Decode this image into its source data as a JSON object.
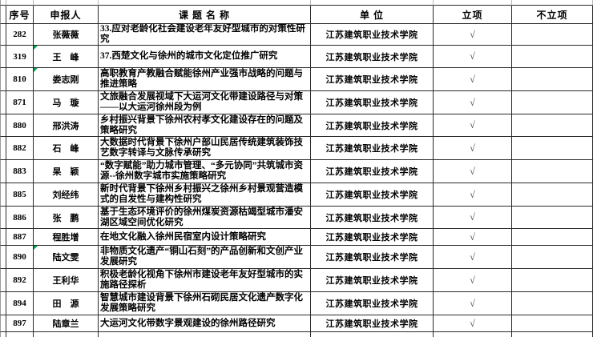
{
  "table": {
    "headers": [
      "序号",
      "申报人",
      "课 题 名 称",
      "单 位",
      "立项",
      "不立项"
    ],
    "check_mark": "√",
    "rows": [
      {
        "no": "282",
        "applicant": "张薇薇",
        "title": "33.应对老龄化社会建设老年友好型城市的对策性研究",
        "unit": "江苏建筑职业技术学院",
        "approved": "√",
        "not_approved": "",
        "name_flag": false,
        "left_green": false
      },
      {
        "no": "319",
        "applicant": "王　峰",
        "title": "37.西楚文化与徐州的城市文化定位推广研究",
        "unit": "江苏建筑职业技术学院",
        "approved": "√",
        "not_approved": "",
        "name_flag": true,
        "left_green": false
      },
      {
        "no": "810",
        "applicant": "娄志刚",
        "title": "高职教育产教融合赋能徐州产业强市战略的问题与推进策略",
        "unit": "江苏建筑职业技术学院",
        "approved": "√",
        "not_approved": "",
        "name_flag": true,
        "left_green": false
      },
      {
        "no": "871",
        "applicant": "马　璇",
        "title": "文旅融合发展视域下大运河文化带建设路径与对策——以大运河徐州段为例",
        "unit": "江苏建筑职业技术学院",
        "approved": "√",
        "not_approved": "",
        "name_flag": false,
        "left_green": false
      },
      {
        "no": "880",
        "applicant": "邢洪涛",
        "title": "乡村振兴背景下徐州农村孝文化建设存在的问题及策略研究",
        "unit": "江苏建筑职业技术学院",
        "approved": "√",
        "not_approved": "",
        "name_flag": false,
        "left_green": false
      },
      {
        "no": "882",
        "applicant": "石　峰",
        "title": "大数据时代背景下徐州户部山民居传统建筑装饰技艺数字转译与文脉传承研究",
        "unit": "江苏建筑职业技术学院",
        "approved": "√",
        "not_approved": "",
        "name_flag": false,
        "left_green": false
      },
      {
        "no": "883",
        "applicant": "杲　颖",
        "title": "“数字赋能”助力城市管理、“多元协同”共筑城市资源--徐州数字城市实施策略研究",
        "unit": "江苏建筑职业技术学院",
        "approved": "√",
        "not_approved": "",
        "name_flag": false,
        "left_green": false
      },
      {
        "no": "885",
        "applicant": "刘经纬",
        "title": "新时代背景下徐州乡村振兴之徐州乡村景观营造模式的自发性与建构性研究",
        "unit": "江苏建筑职业技术学院",
        "approved": "√",
        "not_approved": "",
        "name_flag": false,
        "left_green": false
      },
      {
        "no": "886",
        "applicant": "张　鹏",
        "title": "基于生态环境评价的徐州煤炭资源枯竭型城市潘安湖区域空间优化研究",
        "unit": "江苏建筑职业技术学院",
        "approved": "√",
        "not_approved": "",
        "name_flag": false,
        "left_green": false
      },
      {
        "no": "887",
        "applicant": "程胜增",
        "title": "在地文化融入徐州民宿室内设计策略研究",
        "unit": "江苏建筑职业技术学院",
        "approved": "√",
        "not_approved": "",
        "name_flag": false,
        "left_green": true
      },
      {
        "no": "890",
        "applicant": "陆文雯",
        "title": "非物质文化遗产“铜山石刻”的产品创新和文创产业发展研究",
        "unit": "江苏建筑职业技术学院",
        "approved": "√",
        "not_approved": "",
        "name_flag": true,
        "left_green": false
      },
      {
        "no": "892",
        "applicant": "王利华",
        "title": "积极老龄化视角下徐州市建设老年友好型城市的实施路径探析",
        "unit": "江苏建筑职业技术学院",
        "approved": "√",
        "not_approved": "",
        "name_flag": false,
        "left_green": false
      },
      {
        "no": "894",
        "applicant": "田　源",
        "title": "智慧城市建设背景下徐州石砌民居文化遗产数字化发展策略研究",
        "unit": "江苏建筑职业技术学院",
        "approved": "√",
        "not_approved": "",
        "name_flag": false,
        "left_green": false
      },
      {
        "no": "897",
        "applicant": "陆章兰",
        "title": "大运河文化带数字景观建设的徐州路径研究",
        "unit": "江苏建筑职业技术学院",
        "approved": "√",
        "not_approved": "",
        "name_flag": false,
        "left_green": false
      }
    ]
  },
  "colors": {
    "gridline": "#2a2a2a",
    "green_indicator": "#00a14b",
    "check": "#3d3d3d"
  }
}
